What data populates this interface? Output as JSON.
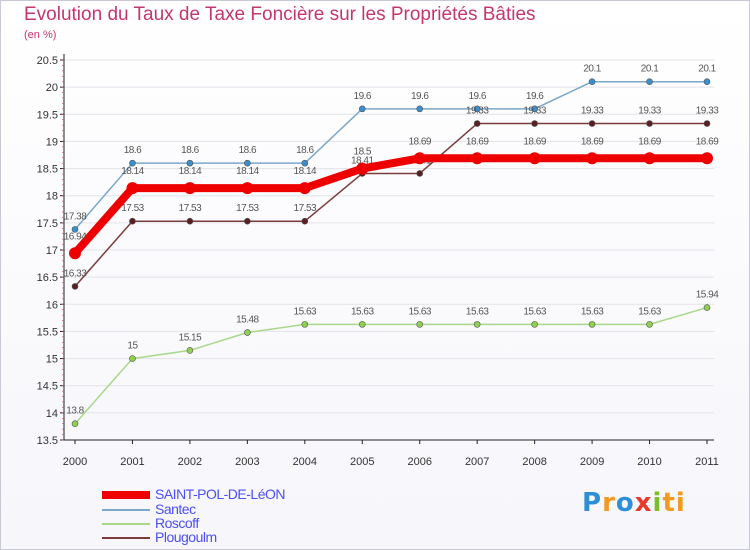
{
  "chart_data": {
    "type": "line",
    "title": "Evolution du Taux de Taxe Foncière sur les Propriétés Bâties",
    "unit_label": "(en %)",
    "x": [
      "2000",
      "2001",
      "2002",
      "2003",
      "2004",
      "2005",
      "2006",
      "2007",
      "2008",
      "2009",
      "2010",
      "2011"
    ],
    "ylim": [
      13.5,
      20.5
    ],
    "yticks": [
      "13.5",
      "14",
      "14.5",
      "15",
      "15.5",
      "16",
      "16.5",
      "17",
      "17.5",
      "18",
      "18.5",
      "19",
      "19.5",
      "20",
      "20.5"
    ],
    "series": [
      {
        "name": "Santec",
        "color": "#7ba7c8",
        "marker": "#3a8fd0",
        "width": 1.5,
        "label_offset": -10,
        "values": [
          17.38,
          18.6,
          18.6,
          18.6,
          18.6,
          19.6,
          19.6,
          19.6,
          19.6,
          20.1,
          20.1,
          20.1
        ],
        "labels": [
          "17.38",
          "18.6",
          "18.6",
          "18.6",
          "18.6",
          "19.6",
          "19.6",
          "19.6",
          "19.6",
          "20.1",
          "20.1",
          "20.1"
        ]
      },
      {
        "name": "Roscoff",
        "color": "#a8d88a",
        "marker": "#8fd051",
        "width": 1.5,
        "label_offset": -10,
        "values": [
          13.8,
          15,
          15.15,
          15.48,
          15.63,
          15.63,
          15.63,
          15.63,
          15.63,
          15.63,
          15.63,
          15.94
        ],
        "labels": [
          "13.8",
          "15",
          "15.15",
          "15.48",
          "15.63",
          "15.63",
          "15.63",
          "15.63",
          "15.63",
          "15.63",
          "15.63",
          "15.94"
        ]
      },
      {
        "name": "Plougoulm",
        "color": "#7a3b3b",
        "marker": "#5a1f22",
        "width": 1.5,
        "label_offset": -10,
        "values": [
          16.33,
          17.53,
          17.53,
          17.53,
          17.53,
          18.41,
          18.41,
          19.33,
          19.33,
          19.33,
          19.33,
          19.33
        ],
        "labels": [
          "16.33",
          "17.53",
          "17.53",
          "17.53",
          "17.53",
          "18.41",
          "18.41",
          "19.33",
          "19.33",
          "19.33",
          "19.33",
          "19.33"
        ]
      },
      {
        "name": "SAINT-POL-DE-LéON",
        "color": "#ee0000",
        "marker": "#ee0000",
        "width": 8,
        "label_offset": -14,
        "values": [
          16.94,
          18.14,
          18.14,
          18.14,
          18.14,
          18.5,
          18.69,
          18.69,
          18.69,
          18.69,
          18.69,
          18.69
        ],
        "labels": [
          "16.94",
          "18.14",
          "18.14",
          "18.14",
          "18.14",
          "18.5",
          "18.69",
          "18.69",
          "18.69",
          "18.69",
          "18.69",
          "18.69"
        ]
      }
    ],
    "legend_order": [
      "SAINT-POL-DE-LéON",
      "Santec",
      "Roscoff",
      "Plougoulm"
    ]
  },
  "legend": [
    {
      "label": "SAINT-POL-DE-LéON",
      "color": "#ee0000",
      "thick": true
    },
    {
      "label": "Santec",
      "color": "#7ba7c8",
      "thick": false
    },
    {
      "label": "Roscoff",
      "color": "#a8d88a",
      "thick": false
    },
    {
      "label": "Plougoulm",
      "color": "#7a3b3b",
      "thick": false
    }
  ],
  "logo": {
    "p1": "P",
    "p2": "r",
    "p3": "o",
    "p4": "x",
    "p5": "i",
    "p6": "ti"
  }
}
